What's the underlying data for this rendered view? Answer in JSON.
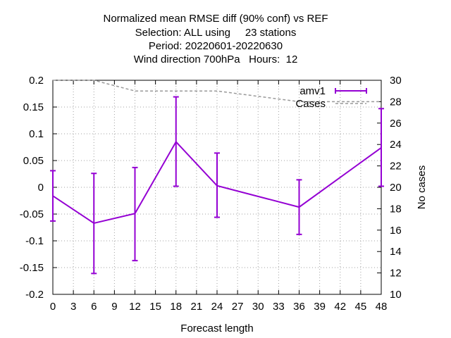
{
  "chart_data": {
    "type": "line",
    "title_lines": [
      "Normalized mean RMSE diff (90% conf) vs REF",
      "Selection: ALL using     23 stations",
      "Period: 20220601-20220630",
      "Wind direction 700hPa   Hours:  12"
    ],
    "xlabel": "Forecast length",
    "ylabel": "",
    "y2label": "No cases",
    "xlim": [
      0,
      48
    ],
    "ylim": [
      -0.2,
      0.2
    ],
    "y2lim": [
      10,
      30
    ],
    "x_ticks": [
      0,
      3,
      6,
      9,
      12,
      15,
      18,
      21,
      24,
      27,
      30,
      33,
      36,
      39,
      42,
      45,
      48
    ],
    "y_ticks": [
      "0.2",
      "0.15",
      "0.1",
      "0.05",
      "0",
      "-0.05",
      "-0.1",
      "-0.15",
      "-0.2"
    ],
    "y_tick_values": [
      0.2,
      0.15,
      0.1,
      0.05,
      0,
      -0.05,
      -0.1,
      -0.15,
      -0.2
    ],
    "y2_ticks": [
      "30",
      "28",
      "26",
      "24",
      "22",
      "20",
      "18",
      "16",
      "14",
      "12",
      "10"
    ],
    "y2_tick_values": [
      30,
      28,
      26,
      24,
      22,
      20,
      18,
      16,
      14,
      12,
      10
    ],
    "grid": true,
    "legend_position": "top-right",
    "series": [
      {
        "name": "amv1",
        "color": "#9400d3",
        "x": [
          0,
          6,
          12,
          18,
          24,
          36,
          48
        ],
        "y": [
          -0.016,
          -0.067,
          -0.049,
          0.085,
          0.003,
          -0.037,
          0.074
        ],
        "err_low": [
          -0.063,
          -0.161,
          -0.137,
          0.002,
          -0.056,
          -0.088,
          0.002
        ],
        "err_high": [
          0.031,
          0.026,
          0.037,
          0.169,
          0.064,
          0.014,
          0.147
        ]
      },
      {
        "name": "Cases",
        "color": "#999999",
        "axis": "y2",
        "x": [
          0,
          6,
          12,
          18,
          24,
          36,
          48
        ],
        "y": [
          30,
          30,
          29,
          29,
          29,
          28,
          28
        ]
      }
    ]
  }
}
